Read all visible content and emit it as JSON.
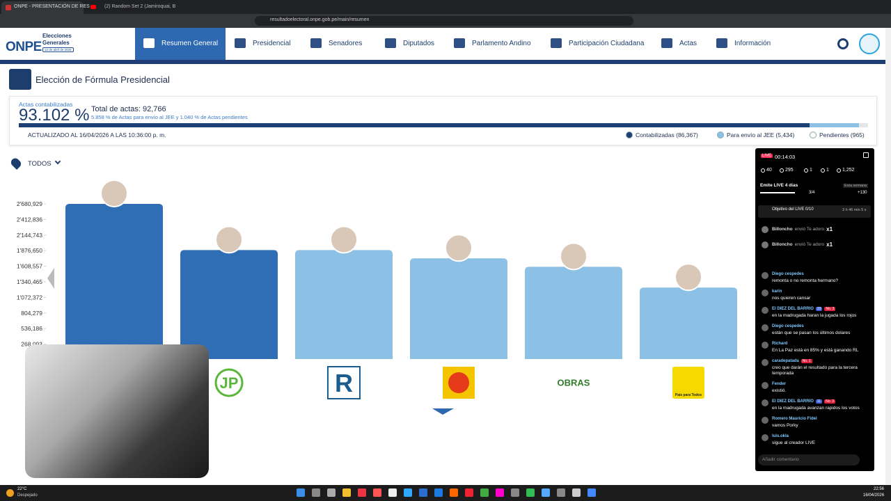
{
  "browser": {
    "tabs": [
      "ONPE - PRESENTACIÓN DE RES",
      "(2) Random Set 2 (Jamiroquai, B"
    ],
    "url": "resultadoelectoral.onpe.gob.pe/main/resumen"
  },
  "header": {
    "logo": "ONPE",
    "brand": "Elecciones Generales",
    "date": "12 de abril de 2026",
    "nav": [
      "Resumen General",
      "Presidencial",
      "Senadores",
      "Diputados",
      "Parlamento Andino",
      "Participación Ciudadana",
      "Actas",
      "Información"
    ]
  },
  "page_title": "Elección de Fórmula Presidencial",
  "summary": {
    "label": "Actas contabilizadas",
    "percent": "93.102 %",
    "total": "Total de actas: 92,766",
    "note": "5.858 % de Actas para envío al JEE y 1.040 % de Actas pendientes",
    "progress": [
      93.102,
      5.858,
      1.04
    ],
    "updated": "ACTUALIZADO AL 16/04/2026 A LAS 10:36:00 p. m.",
    "legend": [
      {
        "text": "Contabilizadas (86,367)",
        "color": "#1e3f75"
      },
      {
        "text": "Para envío al JEE (5,434)",
        "color": "#8cc1e5"
      },
      {
        "text": "Pendientes (965)",
        "color": "#ffffff"
      }
    ]
  },
  "filter": "TODOS",
  "chart_data": {
    "type": "bar",
    "categories": [
      null,
      "JP",
      "R",
      null,
      "OBRAS",
      "País para Todos"
    ],
    "values": [
      2680929,
      1887000,
      1887000,
      1744000,
      1600000,
      1242000
    ],
    "colors": [
      "#2f6db5",
      "#2f6db5",
      "#8cc1e5",
      "#8cc1e5",
      "#8cc1e5",
      "#8cc1e5"
    ],
    "ylim": [
      0,
      2680929
    ],
    "yticks": [
      {
        "value": 268093,
        "label": "268,093"
      },
      {
        "value": 536186,
        "label": "536,186"
      },
      {
        "value": 804279,
        "label": "804,279"
      },
      {
        "value": 1072372,
        "label": "1'072,372"
      },
      {
        "value": 1340465,
        "label": "1'340,465"
      },
      {
        "value": 1608557,
        "label": "1'608,557"
      },
      {
        "value": 1876650,
        "label": "1'876,650"
      },
      {
        "value": 2144743,
        "label": "2'144,743"
      },
      {
        "value": 2412836,
        "label": "2'412,836"
      },
      {
        "value": 2680929,
        "label": "2'680,929"
      }
    ]
  },
  "live": {
    "badge": "LIVE",
    "timer": "00:14:03",
    "stats": [
      "40",
      "295",
      "1",
      "1",
      "1,252"
    ],
    "streak": "Emite LIVE 4 días",
    "week": "Esta semana",
    "streak_count": "3/4",
    "bonus": "+130",
    "goal": "Objetivo del LIVE 0/10",
    "goal_time": "3 h 46 min 5 s",
    "gifts": [
      {
        "user": "Billoncho",
        "text": "envió Te adoro",
        "count": "x1"
      },
      {
        "user": "Billoncho",
        "text": "envió Te adoro",
        "count": "x1"
      }
    ],
    "messages": [
      {
        "user": "Diego cespedes",
        "text": "remonta o no remonta hermano?"
      },
      {
        "user": "karin",
        "text": "nos quieren cansar"
      },
      {
        "user": "El DIEZ DEL BARRIO",
        "badges": [
          "33",
          "No. 3"
        ],
        "text": "en la madrugada haran la jugada los rojos"
      },
      {
        "user": "Diego cespedes",
        "text": "están que se pasan los últimos dolares"
      },
      {
        "user": "Richard",
        "text": "En La Paz está en 85% y está ganando RL"
      },
      {
        "user": "caradepatada",
        "badges": [
          "No. 1"
        ],
        "text": "creo que darán el resultado para la tercera temporada"
      },
      {
        "user": "Fender",
        "text": "existió."
      },
      {
        "user": "El DIEZ DEL BARRIO",
        "badges": [
          "11",
          "No. 3"
        ],
        "text": "en la madrugada avanzan rapidos los votos"
      },
      {
        "user": "Romero Mauricio Fidel",
        "text": "vamos Porky"
      },
      {
        "user": "luis.okla",
        "text": "sigue al creador LIVE"
      }
    ],
    "input": "Añadir comentario"
  },
  "taskbar": {
    "temp": "22°C",
    "weather": "Despejado",
    "time": "22:56",
    "date": "16/04/2026"
  }
}
